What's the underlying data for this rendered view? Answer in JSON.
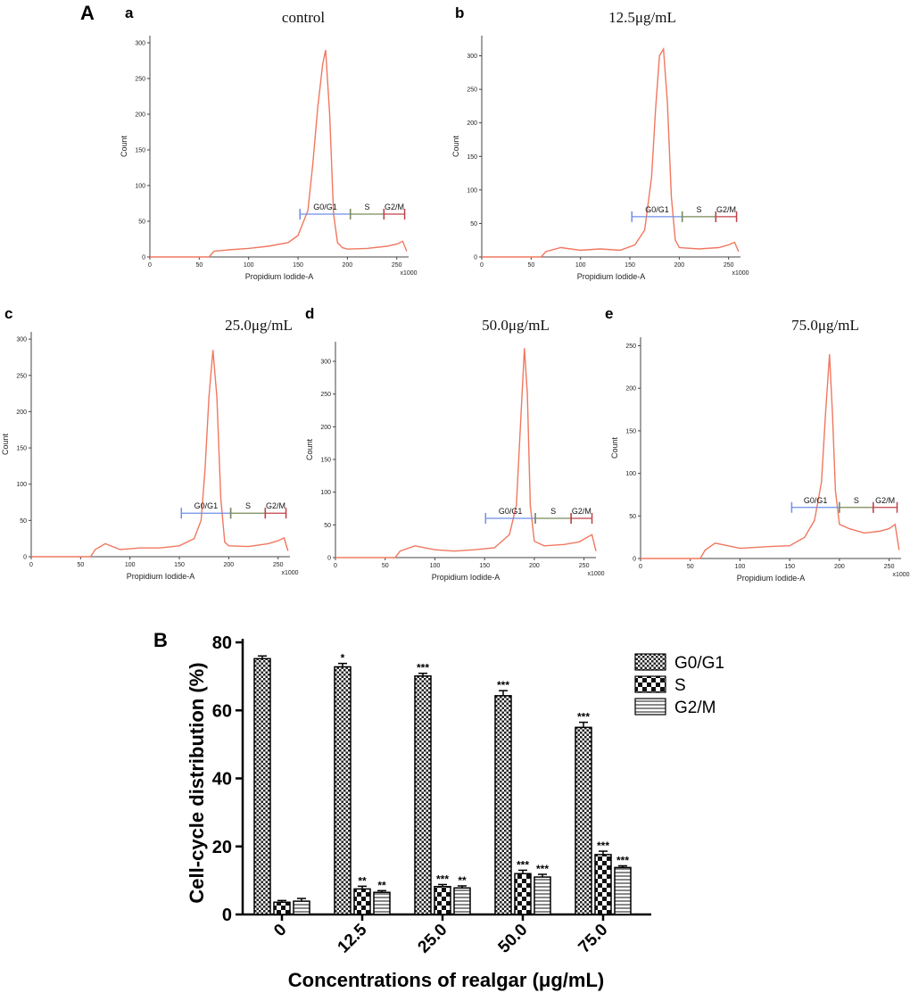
{
  "panel_A_label": "A",
  "panel_B_label": "B",
  "colors": {
    "histogram": "#f07860",
    "gate_g0g1": "#6f8fe8",
    "gate_s": "#7a8a5a",
    "gate_g2m": "#c0404a"
  },
  "chart_data": [
    {
      "type": "line",
      "id": "a",
      "letter": "a",
      "title": "control",
      "xlabel": "Propidium Iodide-A",
      "ylabel": "Count",
      "x_multiplier": "x1000",
      "xlim": [
        0,
        262
      ],
      "ylim": [
        0,
        310
      ],
      "xticks": [
        0,
        50,
        100,
        150,
        200,
        250
      ],
      "yticks": [
        0,
        50,
        100,
        150,
        200,
        250,
        300
      ],
      "x": [
        0,
        60,
        65,
        80,
        100,
        120,
        140,
        150,
        160,
        165,
        170,
        175,
        178,
        182,
        186,
        190,
        195,
        200,
        220,
        240,
        250,
        256,
        260
      ],
      "y": [
        0,
        0,
        8,
        10,
        12,
        15,
        20,
        30,
        65,
        130,
        210,
        270,
        290,
        200,
        60,
        20,
        13,
        11,
        12,
        15,
        18,
        22,
        8
      ],
      "gates": [
        {
          "label": "G0/G1",
          "start": 152,
          "end": 203,
          "y": 60
        },
        {
          "label": "S",
          "start": 203,
          "end": 237,
          "y": 60
        },
        {
          "label": "G2/M",
          "start": 237,
          "end": 258,
          "y": 60
        }
      ]
    },
    {
      "type": "line",
      "id": "b",
      "letter": "b",
      "title": "12.5μg/mL",
      "xlabel": "Propidium Iodide-A",
      "ylabel": "Count",
      "x_multiplier": "x1000",
      "xlim": [
        0,
        262
      ],
      "ylim": [
        0,
        330
      ],
      "xticks": [
        0,
        50,
        100,
        150,
        200,
        250
      ],
      "yticks": [
        0,
        50,
        100,
        150,
        200,
        250,
        300
      ],
      "x": [
        0,
        60,
        65,
        80,
        100,
        120,
        140,
        155,
        165,
        172,
        176,
        180,
        184,
        188,
        192,
        196,
        200,
        220,
        240,
        250,
        256,
        260
      ],
      "y": [
        0,
        0,
        8,
        14,
        10,
        12,
        10,
        18,
        40,
        120,
        220,
        300,
        310,
        230,
        90,
        25,
        14,
        12,
        14,
        18,
        22,
        8
      ],
      "gates": [
        {
          "label": "G0/G1",
          "start": 152,
          "end": 203,
          "y": 60
        },
        {
          "label": "S",
          "start": 203,
          "end": 237,
          "y": 60
        },
        {
          "label": "G2/M",
          "start": 237,
          "end": 258,
          "y": 60
        }
      ]
    },
    {
      "type": "line",
      "id": "c",
      "letter": "c",
      "title": "25.0μg/mL",
      "xlabel": "Propidium Iodide-A",
      "ylabel": "Count",
      "x_multiplier": "x1000",
      "xlim": [
        0,
        262
      ],
      "ylim": [
        0,
        310
      ],
      "xticks": [
        0,
        50,
        100,
        150,
        200,
        250
      ],
      "yticks": [
        0,
        50,
        100,
        150,
        200,
        250,
        300
      ],
      "x": [
        0,
        60,
        65,
        75,
        90,
        110,
        130,
        150,
        165,
        172,
        176,
        180,
        184,
        188,
        192,
        196,
        200,
        220,
        240,
        250,
        256,
        260
      ],
      "y": [
        0,
        0,
        10,
        18,
        10,
        12,
        12,
        15,
        25,
        50,
        120,
        220,
        285,
        220,
        80,
        20,
        15,
        14,
        18,
        22,
        26,
        8
      ],
      "gates": [
        {
          "label": "G0/G1",
          "start": 152,
          "end": 202,
          "y": 60
        },
        {
          "label": "S",
          "start": 202,
          "end": 237,
          "y": 60
        },
        {
          "label": "G2/M",
          "start": 237,
          "end": 258,
          "y": 60
        }
      ]
    },
    {
      "type": "line",
      "id": "d",
      "letter": "d",
      "title": "50.0μg/mL",
      "xlabel": "Propidium Iodide-A",
      "ylabel": "Count",
      "x_multiplier": "x1000",
      "xlim": [
        0,
        262
      ],
      "ylim": [
        0,
        330
      ],
      "xticks": [
        0,
        50,
        100,
        150,
        200,
        250
      ],
      "yticks": [
        0,
        50,
        100,
        150,
        200,
        250,
        300
      ],
      "x": [
        0,
        60,
        65,
        80,
        100,
        120,
        140,
        160,
        175,
        182,
        186,
        190,
        193,
        196,
        200,
        210,
        230,
        245,
        252,
        258,
        262
      ],
      "y": [
        0,
        0,
        10,
        18,
        12,
        10,
        12,
        15,
        35,
        80,
        200,
        320,
        250,
        80,
        25,
        18,
        20,
        24,
        30,
        35,
        10
      ],
      "gates": [
        {
          "label": "G0/G1",
          "start": 151,
          "end": 201,
          "y": 60
        },
        {
          "label": "S",
          "start": 201,
          "end": 237,
          "y": 60
        },
        {
          "label": "G2/M",
          "start": 237,
          "end": 258,
          "y": 60
        }
      ]
    },
    {
      "type": "line",
      "id": "e",
      "letter": "e",
      "title": "75.0μg/mL",
      "xlabel": "Propidium Iodide-A",
      "ylabel": "Count",
      "x_multiplier": "x1000",
      "xlim": [
        0,
        262
      ],
      "ylim": [
        0,
        260
      ],
      "xticks": [
        0,
        50,
        100,
        150,
        200,
        250
      ],
      "yticks": [
        0,
        50,
        100,
        150,
        200,
        250
      ],
      "x": [
        0,
        60,
        65,
        75,
        100,
        130,
        150,
        165,
        175,
        182,
        186,
        190,
        193,
        196,
        200,
        210,
        225,
        240,
        250,
        256,
        260
      ],
      "y": [
        0,
        0,
        10,
        18,
        12,
        14,
        15,
        25,
        45,
        90,
        170,
        240,
        170,
        80,
        40,
        35,
        30,
        32,
        35,
        40,
        10
      ],
      "gates": [
        {
          "label": "G0/G1",
          "start": 152,
          "end": 200,
          "y": 60
        },
        {
          "label": "S",
          "start": 200,
          "end": 234,
          "y": 60
        },
        {
          "label": "G2/M",
          "start": 234,
          "end": 258,
          "y": 60
        }
      ]
    },
    {
      "type": "bar",
      "id": "B",
      "title": "",
      "xlabel": "Concentrations of realgar (μg/mL)",
      "ylabel": "Cell-cycle distribution (%)",
      "categories": [
        "0",
        "12.5",
        "25.0",
        "50.0",
        "75.0"
      ],
      "ylim": [
        0,
        80
      ],
      "yticks": [
        0,
        20,
        40,
        60,
        80
      ],
      "series": [
        {
          "name": "G0/G1",
          "pattern": "fine-check",
          "values": [
            75.2,
            72.8,
            70.1,
            64.3,
            55.0
          ],
          "errors": [
            0.8,
            1.0,
            0.8,
            1.5,
            1.5
          ],
          "stars": [
            "",
            "*",
            "***",
            "***",
            "***"
          ]
        },
        {
          "name": "S",
          "pattern": "coarse-check",
          "values": [
            3.6,
            7.5,
            8.2,
            12.0,
            17.6
          ],
          "errors": [
            0.5,
            0.8,
            0.6,
            1.0,
            1.0
          ],
          "stars": [
            "",
            "**",
            "***",
            "***",
            "***"
          ]
        },
        {
          "name": "G2/M",
          "pattern": "horizontal-lines",
          "values": [
            3.9,
            6.5,
            7.8,
            11.0,
            13.8
          ],
          "errors": [
            0.8,
            0.5,
            0.6,
            0.8,
            0.5
          ],
          "stars": [
            "",
            "**",
            "**",
            "***",
            "***"
          ]
        }
      ]
    }
  ]
}
